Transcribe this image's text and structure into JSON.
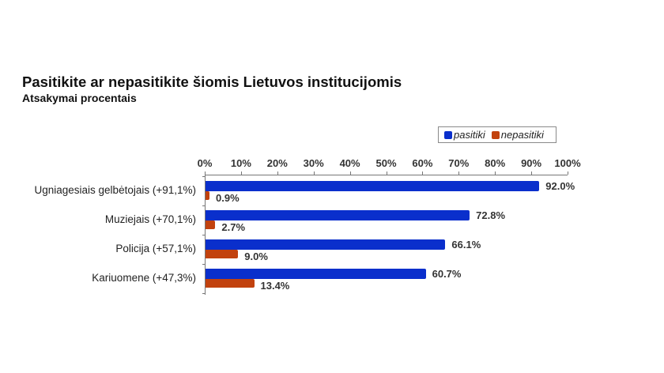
{
  "title": "Pasitikite ar nepasitikite šiomis Lietuvos institucijomis",
  "subtitle": "Atsakymai procentais",
  "legend": [
    {
      "label": "pasitiki",
      "color": "#0a2fcc"
    },
    {
      "label": "nepasitiki",
      "color": "#c2420e"
    }
  ],
  "axis": {
    "ticks": [
      "0%",
      "10%",
      "20%",
      "30%",
      "40%",
      "50%",
      "60%",
      "70%",
      "80%",
      "90%",
      "100%"
    ]
  },
  "rows": [
    {
      "label": "Ugniagesiais gelbėtojais (+91,1%)",
      "pasitiki": 92.0,
      "pasitiki_label": "92.0%",
      "nepasitiki": 0.9,
      "nepasitiki_label": "0.9%"
    },
    {
      "label": "Muziejais (+70,1%)",
      "pasitiki": 72.8,
      "pasitiki_label": "72.8%",
      "nepasitiki": 2.7,
      "nepasitiki_label": "2.7%"
    },
    {
      "label": "Policija (+57,1%)",
      "pasitiki": 66.1,
      "pasitiki_label": "66.1%",
      "nepasitiki": 9.0,
      "nepasitiki_label": "9.0%"
    },
    {
      "label": "Kariuomene (+47,3%)",
      "pasitiki": 60.7,
      "pasitiki_label": "60.7%",
      "nepasitiki": 13.4,
      "nepasitiki_label": "13.4%"
    }
  ],
  "chart_data": {
    "type": "bar",
    "orientation": "horizontal",
    "title": "Pasitikite ar nepasitikite šiomis Lietuvos institucijomis",
    "subtitle": "Atsakymai procentais",
    "categories": [
      "Ugniagesiais gelbėtojais (+91,1%)",
      "Muziejais (+70,1%)",
      "Policija (+57,1%)",
      "Kariuomene (+47,3%)"
    ],
    "series": [
      {
        "name": "pasitiki",
        "color": "#0a2fcc",
        "values": [
          92.0,
          72.8,
          66.1,
          60.7
        ]
      },
      {
        "name": "nepasitiki",
        "color": "#c2420e",
        "values": [
          0.9,
          2.7,
          9.0,
          13.4
        ]
      }
    ],
    "xlabel": "",
    "ylabel": "",
    "xlim": [
      0,
      100
    ],
    "x_ticks": [
      "0%",
      "10%",
      "20%",
      "30%",
      "40%",
      "50%",
      "60%",
      "70%",
      "80%",
      "90%",
      "100%"
    ],
    "x_axis_position": "top",
    "grid": false,
    "legend_position": "top-right",
    "data_labels": true
  }
}
